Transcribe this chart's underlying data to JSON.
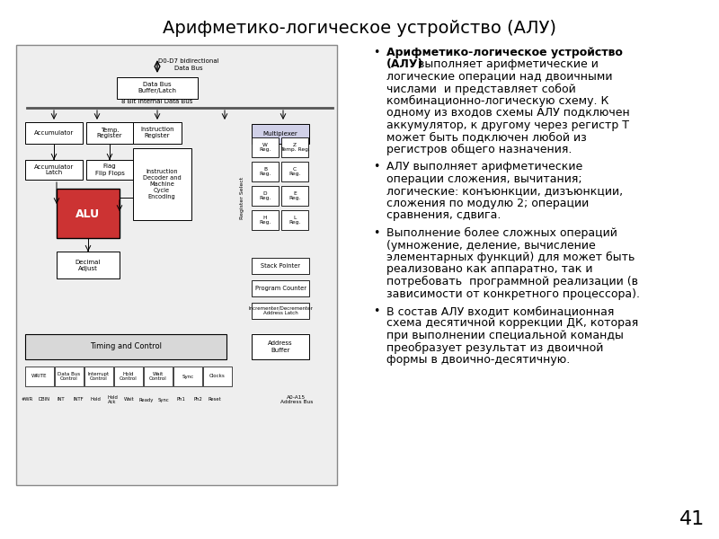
{
  "title": "Арифметико-логическое устройство (АЛУ)",
  "title_fontsize": 14,
  "background_color": "#ffffff",
  "page_number": "41",
  "bullet_points": [
    {
      "bold_prefix": "Арифметико-логическое устройство\n(АЛУ)",
      "text": " выполняет арифметические и\nлогические операции над двоичными\nчислами  и представляет собой\nкомбинационно-логическую схему. К\nодному из входов схемы АЛУ подключен\nаккумулятор, к другому через регистр Т\nможет быть подключен любой из\nрегистров общего назначения."
    },
    {
      "bold_prefix": "",
      "text": "АЛУ выполняет арифметические\nоперации сложения, вычитания;\nлогические: конъюнкции, дизъюнкции,\nсложения по модулю 2; операции\nсравнения, сдвига."
    },
    {
      "bold_prefix": "",
      "text": "Выполнение более сложных операций\n(умножение, деление, вычисление\nэлементарных функций) для может быть\nреализовано как аппаратно, так и\nпотребовать  программной реализации (в\nзависимости от конкретного процессора)."
    },
    {
      "bold_prefix": "",
      "text": "В состав АЛУ входит комбинационная\nсхема десятичной коррекции ДК, которая\nпри выполнении специальной команды\nпреобразует результат из двоичной\nформы в двоично-десятичную."
    }
  ]
}
